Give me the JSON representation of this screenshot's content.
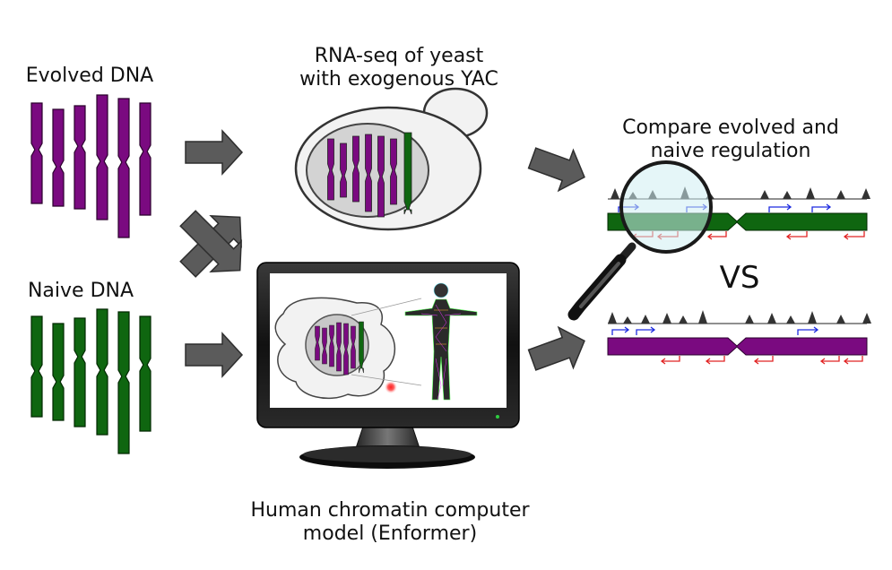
{
  "labels": {
    "evolved_dna": "Evolved DNA",
    "naive_dna": "Naive DNA",
    "rnaseq_line1": "RNA-seq of yeast",
    "rnaseq_line2": "with exogenous YAC",
    "compare_line1": "Compare evolved and",
    "compare_line2": "naive regulation",
    "vs": "VS",
    "enformer_line1": "Human chromatin computer",
    "enformer_line2": "model (Enformer)"
  },
  "colors": {
    "evolved": "#7a0a80",
    "naive": "#0f6610",
    "arrow": "#5b5b5b",
    "forward_tss": "#1d2be0",
    "reverse_tss": "#e12424",
    "lens": "#cfeff2"
  },
  "icons": [
    "chromosome-icon",
    "yeast-cell-icon",
    "monitor-icon",
    "human-body-icon",
    "magnifying-glass-icon",
    "arrow-icon"
  ]
}
